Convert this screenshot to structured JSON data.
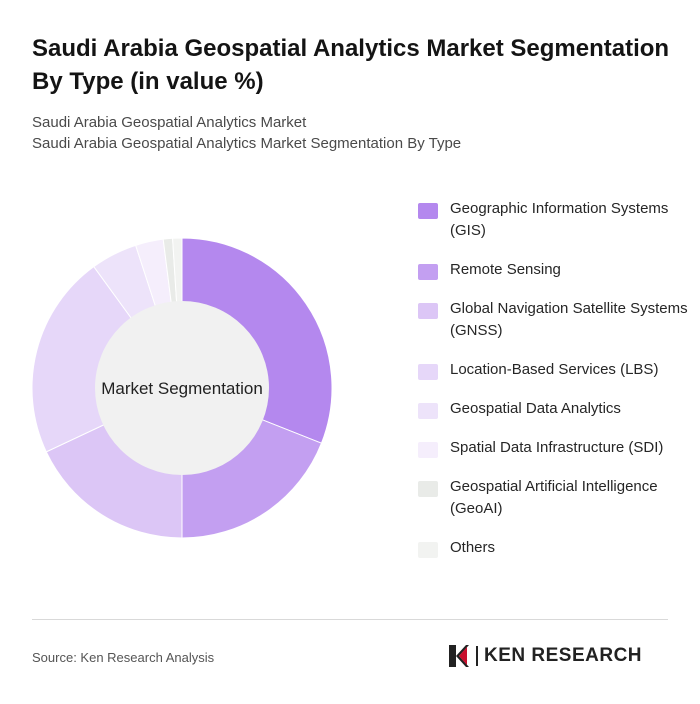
{
  "header": {
    "title": "Saudi Arabia Geospatial Analytics Market Segmentation By Type (in value %)",
    "subtitle_1": "Saudi Arabia Geospatial Analytics Market",
    "subtitle_2": "Saudi Arabia Geospatial Analytics Market Segmentation By Type"
  },
  "chart_data": {
    "type": "pie",
    "donut": true,
    "center_label": "Market Segmentation",
    "categories": [
      "Geographic Information Systems (GIS)",
      "Remote Sensing",
      "Global Navigation Satellite Systems (GNSS)",
      "Location-Based Services (LBS)",
      "Geospatial Data Analytics",
      "Spatial Data Infrastructure (SDI)",
      "Geospatial Artificial Intelligence (GeoAI)",
      "Others"
    ],
    "values": [
      31,
      19,
      18,
      22,
      5,
      3,
      1,
      1
    ],
    "colors": [
      "#b488ee",
      "#c39ff1",
      "#dcc6f6",
      "#e6d7f9",
      "#ede3fa",
      "#f5eefc",
      "#e9ebe8",
      "#f2f3f1"
    ],
    "legend_position": "right",
    "unit": "%"
  },
  "footer": {
    "source": "Source: Ken Research Analysis",
    "logo_text": "KEN RESEARCH"
  },
  "icons": {
    "logo": "ken-research-logo-icon"
  }
}
